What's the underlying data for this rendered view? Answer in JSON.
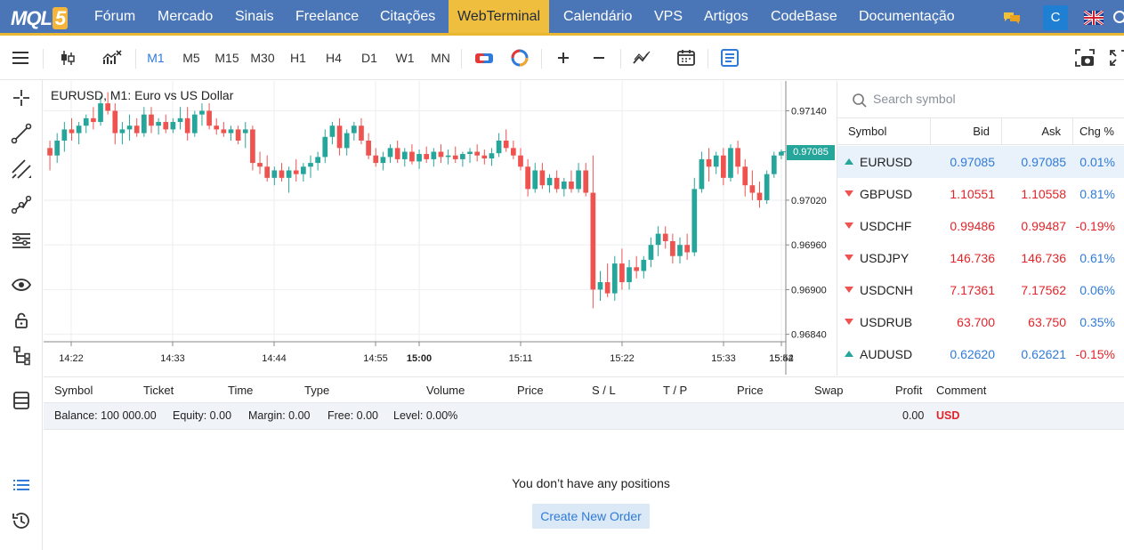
{
  "nav": {
    "logo_text": "MQL",
    "logo_number": "5",
    "items": [
      "Fórum",
      "Mercado",
      "Sinais",
      "Freelance",
      "Citações",
      "WebTerminal",
      "Calendário",
      "VPS",
      "Artigos",
      "CodeBase",
      "Documentação"
    ],
    "active": "WebTerminal",
    "user_initial": "C",
    "icons": [
      "chat-icon",
      "user-avatar",
      "uk-flag-icon",
      "search-icon"
    ]
  },
  "toolbar": {
    "timeframes": [
      "M1",
      "M5",
      "M15",
      "M30",
      "H1",
      "H4",
      "D1",
      "W1",
      "MN"
    ],
    "active_timeframe": "M1",
    "icons": [
      "menu-icon",
      "candles-icon",
      "indicators-icon",
      "trade-toggle-icon",
      "oneclick-icon",
      "zoom-in-icon",
      "zoom-out-icon",
      "indicator-add-icon",
      "calendar-icon",
      "depth-icon",
      "screenshot-icon",
      "fullscreen-icon"
    ]
  },
  "sidebar": {
    "icons": [
      "crosshair-icon",
      "trendline-icon",
      "channel-icon",
      "polyline-icon",
      "fibonacci-icon",
      "eye-icon",
      "lock-icon",
      "objects-tree-icon",
      "layers-icon",
      "list-icon",
      "history-icon"
    ]
  },
  "chart": {
    "title": "EURUSD, M1: Euro vs US Dollar",
    "current_price": "0.97085",
    "price_labels": [
      "0.97140",
      "0.97020",
      "0.96960",
      "0.96900",
      "0.96840"
    ],
    "time_labels": [
      "14:22",
      "14:33",
      "14:44",
      "14:55",
      "15:00",
      "15:11",
      "15:22",
      "15:33",
      "15:44",
      "15:52"
    ],
    "up_color": "#26a69a",
    "down_color": "#ef5350"
  },
  "chart_data": {
    "type": "candlestick",
    "symbol": "EURUSD",
    "timeframe": "M1",
    "title": "EURUSD, M1: Euro vs US Dollar",
    "ylim": [
      0.9683,
      0.9718
    ],
    "y_ticks": [
      0.9714,
      0.9702,
      0.9696,
      0.969,
      0.9684
    ],
    "x_ticks": [
      "14:22",
      "14:33",
      "14:44",
      "14:55",
      "15:00",
      "15:11",
      "15:22",
      "15:33",
      "15:44",
      "15:52"
    ],
    "last_price": 0.97085,
    "grid": true,
    "ohlc": [
      [
        0.9709,
        0.971,
        0.9706,
        0.9708
      ],
      [
        0.9708,
        0.9711,
        0.9707,
        0.971
      ],
      [
        0.971,
        0.97125,
        0.97085,
        0.97115
      ],
      [
        0.97115,
        0.9713,
        0.971,
        0.9711
      ],
      [
        0.9711,
        0.97125,
        0.97095,
        0.9712
      ],
      [
        0.9712,
        0.97135,
        0.9711,
        0.9713
      ],
      [
        0.9713,
        0.97145,
        0.97115,
        0.97125
      ],
      [
        0.97125,
        0.9716,
        0.9712,
        0.9715
      ],
      [
        0.9715,
        0.97165,
        0.97135,
        0.9714
      ],
      [
        0.9714,
        0.9715,
        0.97095,
        0.9711
      ],
      [
        0.9711,
        0.97125,
        0.97095,
        0.97115
      ],
      [
        0.97115,
        0.97135,
        0.971,
        0.9712
      ],
      [
        0.9712,
        0.9713,
        0.97105,
        0.9711
      ],
      [
        0.9711,
        0.97145,
        0.97105,
        0.97135
      ],
      [
        0.97135,
        0.97145,
        0.9711,
        0.9712
      ],
      [
        0.9712,
        0.9713,
        0.97108,
        0.97125
      ],
      [
        0.97125,
        0.97135,
        0.9711,
        0.97115
      ],
      [
        0.97115,
        0.9713,
        0.9711,
        0.97125
      ],
      [
        0.97125,
        0.97145,
        0.97115,
        0.9713
      ],
      [
        0.9713,
        0.97145,
        0.971,
        0.9711
      ],
      [
        0.9711,
        0.9714,
        0.97105,
        0.97135
      ],
      [
        0.97135,
        0.9715,
        0.9712,
        0.9714
      ],
      [
        0.9714,
        0.9715,
        0.97115,
        0.9712
      ],
      [
        0.9712,
        0.9713,
        0.97108,
        0.97115
      ],
      [
        0.97115,
        0.97125,
        0.97105,
        0.9711
      ],
      [
        0.9711,
        0.9712,
        0.971,
        0.97115
      ],
      [
        0.97115,
        0.9712,
        0.97095,
        0.971
      ],
      [
        0.9711,
        0.97125,
        0.9709,
        0.97115
      ],
      [
        0.97115,
        0.9712,
        0.9706,
        0.9707
      ],
      [
        0.9707,
        0.97085,
        0.97055,
        0.97065
      ],
      [
        0.97065,
        0.9708,
        0.97045,
        0.9705
      ],
      [
        0.9705,
        0.97065,
        0.9704,
        0.9706
      ],
      [
        0.9706,
        0.9707,
        0.97045,
        0.9705
      ],
      [
        0.9705,
        0.97065,
        0.9703,
        0.9706
      ],
      [
        0.9706,
        0.97075,
        0.97045,
        0.97055
      ],
      [
        0.97055,
        0.9707,
        0.97045,
        0.97065
      ],
      [
        0.97065,
        0.9708,
        0.9705,
        0.9707
      ],
      [
        0.9707,
        0.97085,
        0.9706,
        0.97078
      ],
      [
        0.97078,
        0.97115,
        0.9707,
        0.97105
      ],
      [
        0.97105,
        0.97125,
        0.97095,
        0.9712
      ],
      [
        0.9712,
        0.9713,
        0.9708,
        0.9709
      ],
      [
        0.9709,
        0.97115,
        0.9708,
        0.9711
      ],
      [
        0.9711,
        0.97125,
        0.971,
        0.9712
      ],
      [
        0.9712,
        0.9713,
        0.97095,
        0.971
      ],
      [
        0.971,
        0.9711,
        0.97075,
        0.9708
      ],
      [
        0.9708,
        0.9709,
        0.97065,
        0.9707
      ],
      [
        0.9707,
        0.97085,
        0.9706,
        0.97078
      ],
      [
        0.97078,
        0.97095,
        0.9707,
        0.9709
      ],
      [
        0.9709,
        0.971,
        0.9707,
        0.97075
      ],
      [
        0.97075,
        0.9709,
        0.97065,
        0.97085
      ],
      [
        0.97085,
        0.97095,
        0.97068,
        0.97072
      ],
      [
        0.97072,
        0.97088,
        0.97062,
        0.97082
      ],
      [
        0.97082,
        0.97092,
        0.9707,
        0.97075
      ],
      [
        0.97075,
        0.9709,
        0.97065,
        0.97085
      ],
      [
        0.97085,
        0.97095,
        0.9707,
        0.97078
      ],
      [
        0.97078,
        0.97088,
        0.97068,
        0.9708
      ],
      [
        0.9708,
        0.97092,
        0.9707,
        0.97075
      ],
      [
        0.97075,
        0.97085,
        0.97065,
        0.97082
      ],
      [
        0.97082,
        0.9709,
        0.9707,
        0.97085
      ],
      [
        0.97085,
        0.97095,
        0.97072,
        0.9708
      ],
      [
        0.9708,
        0.97088,
        0.97068,
        0.97076
      ],
      [
        0.97076,
        0.9709,
        0.97066,
        0.97083
      ],
      [
        0.97083,
        0.9711,
        0.97078,
        0.971
      ],
      [
        0.971,
        0.97115,
        0.97085,
        0.9709
      ],
      [
        0.9709,
        0.971,
        0.97075,
        0.9708
      ],
      [
        0.9708,
        0.9709,
        0.9706,
        0.97065
      ],
      [
        0.97065,
        0.97075,
        0.97025,
        0.97035
      ],
      [
        0.97035,
        0.9707,
        0.9703,
        0.9706
      ],
      [
        0.9706,
        0.9707,
        0.97035,
        0.9704
      ],
      [
        0.9704,
        0.97055,
        0.9703,
        0.9705
      ],
      [
        0.9705,
        0.9706,
        0.9703,
        0.97035
      ],
      [
        0.97035,
        0.9705,
        0.97025,
        0.97045
      ],
      [
        0.97045,
        0.9706,
        0.9703,
        0.97035
      ],
      [
        0.97035,
        0.9707,
        0.9703,
        0.9706
      ],
      [
        0.9706,
        0.9707,
        0.97025,
        0.9703
      ],
      [
        0.9703,
        0.9708,
        0.96875,
        0.969
      ],
      [
        0.969,
        0.96925,
        0.96885,
        0.9691
      ],
      [
        0.9691,
        0.96935,
        0.9689,
        0.96895
      ],
      [
        0.96895,
        0.96945,
        0.96885,
        0.96935
      ],
      [
        0.96935,
        0.96955,
        0.969,
        0.9691
      ],
      [
        0.9691,
        0.9694,
        0.969,
        0.9693
      ],
      [
        0.9693,
        0.96945,
        0.96915,
        0.96925
      ],
      [
        0.96925,
        0.96945,
        0.96915,
        0.9694
      ],
      [
        0.9694,
        0.9697,
        0.9693,
        0.9696
      ],
      [
        0.9696,
        0.96985,
        0.96945,
        0.96975
      ],
      [
        0.96975,
        0.96985,
        0.96955,
        0.96965
      ],
      [
        0.96965,
        0.96975,
        0.96935,
        0.96945
      ],
      [
        0.96945,
        0.9697,
        0.96935,
        0.9696
      ],
      [
        0.9696,
        0.96975,
        0.9694,
        0.9695
      ],
      [
        0.9695,
        0.9705,
        0.96945,
        0.97035
      ],
      [
        0.97035,
        0.97085,
        0.9703,
        0.97075
      ],
      [
        0.97075,
        0.9709,
        0.97045,
        0.97065
      ],
      [
        0.97065,
        0.97085,
        0.97055,
        0.9708
      ],
      [
        0.9708,
        0.9709,
        0.9704,
        0.9705
      ],
      [
        0.9705,
        0.97095,
        0.97045,
        0.9709
      ],
      [
        0.9709,
        0.971,
        0.97055,
        0.97065
      ],
      [
        0.97065,
        0.97075,
        0.97025,
        0.9704
      ],
      [
        0.9704,
        0.9706,
        0.9702,
        0.9703
      ],
      [
        0.9703,
        0.97045,
        0.9701,
        0.9702
      ],
      [
        0.9702,
        0.9706,
        0.97015,
        0.97055
      ],
      [
        0.97055,
        0.97085,
        0.9705,
        0.9708
      ],
      [
        0.9708,
        0.97088,
        0.97075,
        0.97085
      ]
    ]
  },
  "watch": {
    "search_placeholder": "Search symbol",
    "headers": [
      "Symbol",
      "Bid",
      "Ask",
      "Chg %"
    ],
    "rows": [
      {
        "symbol": "EURUSD",
        "bid": "0.97085",
        "ask": "0.97085",
        "chg": "0.01%",
        "dir": "up",
        "bid_color": "blue",
        "chg_color": "blue",
        "selected": true
      },
      {
        "symbol": "GBPUSD",
        "bid": "1.10551",
        "ask": "1.10558",
        "chg": "0.81%",
        "dir": "down",
        "bid_color": "red",
        "chg_color": "blue",
        "selected": false
      },
      {
        "symbol": "USDCHF",
        "bid": "0.99486",
        "ask": "0.99487",
        "chg": "-0.19%",
        "dir": "down",
        "bid_color": "red",
        "chg_color": "red",
        "selected": false
      },
      {
        "symbol": "USDJPY",
        "bid": "146.736",
        "ask": "146.736",
        "chg": "0.61%",
        "dir": "down",
        "bid_color": "red",
        "chg_color": "blue",
        "selected": false
      },
      {
        "symbol": "USDCNH",
        "bid": "7.17361",
        "ask": "7.17562",
        "chg": "0.06%",
        "dir": "down",
        "bid_color": "red",
        "chg_color": "blue",
        "selected": false
      },
      {
        "symbol": "USDRUB",
        "bid": "63.700",
        "ask": "63.750",
        "chg": "0.35%",
        "dir": "down",
        "bid_color": "red",
        "chg_color": "blue",
        "selected": false
      },
      {
        "symbol": "AUDUSD",
        "bid": "0.62620",
        "ask": "0.62621",
        "chg": "-0.15%",
        "dir": "up",
        "bid_color": "blue",
        "chg_color": "red",
        "selected": false
      }
    ]
  },
  "trade": {
    "headers": [
      "Symbol",
      "Ticket",
      "Time",
      "Type",
      "Volume",
      "Price",
      "S / L",
      "T / P",
      "Price",
      "Swap",
      "Profit",
      "Comment"
    ],
    "balance": "Balance: 100 000.00",
    "equity": "Equity: 0.00",
    "margin": "Margin: 0.00",
    "free": "Free: 0.00",
    "level": "Level: 0.00%",
    "profit": "0.00",
    "currency": "USD",
    "empty_message": "You don’t have any positions",
    "create_button": "Create New Order"
  }
}
